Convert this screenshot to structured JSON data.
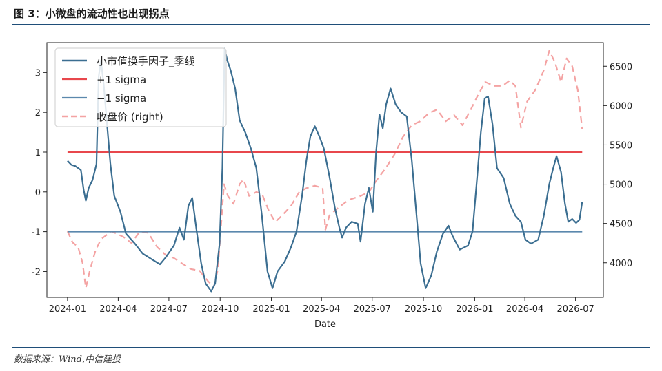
{
  "title": "图 3：小微盘的流动性也出现拐点",
  "source": "数据来源：Wind,中信建投",
  "colors": {
    "factor": "#3b6e91",
    "plus": "#e8474c",
    "minus": "#5b88ad",
    "close": "#f4a3a3",
    "rule": "#1f4e79"
  },
  "chart_data": {
    "type": "line",
    "xlabel": "Date",
    "x_ticks": [
      "2024-01",
      "2024-04",
      "2024-07",
      "2024-10",
      "2025-01",
      "2025-04",
      "2025-07",
      "2025-10",
      "2026-01",
      "2026-04",
      "2026-07"
    ],
    "y_left_ticks": [
      "-2",
      "-1",
      "0",
      "1",
      "2",
      "3"
    ],
    "y_right_ticks": [
      "4000",
      "4500",
      "5000",
      "5500",
      "6000",
      "6500"
    ],
    "y_left_lim": [
      -2.65,
      3.75
    ],
    "y_right_lim": [
      3560,
      6800
    ],
    "x_lim": [
      "2023-11-25",
      "2026-08-20"
    ],
    "legend": [
      "小市值换手因子_季线",
      "+1 sigma",
      "−1 sigma",
      "收盘价 (right)"
    ],
    "legend_position": "top-left",
    "grid": false,
    "series": [
      {
        "name": "小市值换手因子_季线",
        "axis": "left",
        "points": [
          [
            "2024-01-01",
            0.78
          ],
          [
            "2024-01-08",
            0.68
          ],
          [
            "2024-01-15",
            0.65
          ],
          [
            "2024-01-25",
            0.55
          ],
          [
            "2024-01-30",
            0.05
          ],
          [
            "2024-02-03",
            -0.22
          ],
          [
            "2024-02-08",
            0.1
          ],
          [
            "2024-02-15",
            0.3
          ],
          [
            "2024-02-22",
            0.7
          ],
          [
            "2024-02-26",
            2.9
          ],
          [
            "2024-03-01",
            3.3
          ],
          [
            "2024-03-06",
            2.7
          ],
          [
            "2024-03-12",
            1.7
          ],
          [
            "2024-03-18",
            0.7
          ],
          [
            "2024-03-25",
            -0.1
          ],
          [
            "2024-04-05",
            -0.5
          ],
          [
            "2024-04-15",
            -1.05
          ],
          [
            "2024-05-01",
            -1.3
          ],
          [
            "2024-05-15",
            -1.55
          ],
          [
            "2024-06-01",
            -1.7
          ],
          [
            "2024-06-15",
            -1.82
          ],
          [
            "2024-06-25",
            -1.65
          ],
          [
            "2024-07-10",
            -1.35
          ],
          [
            "2024-07-20",
            -0.9
          ],
          [
            "2024-07-28",
            -1.2
          ],
          [
            "2024-08-05",
            -0.35
          ],
          [
            "2024-08-12",
            -0.15
          ],
          [
            "2024-08-20",
            -1.0
          ],
          [
            "2024-08-28",
            -1.8
          ],
          [
            "2024-09-05",
            -2.3
          ],
          [
            "2024-09-15",
            -2.5
          ],
          [
            "2024-09-22",
            -2.3
          ],
          [
            "2024-09-30",
            -1.3
          ],
          [
            "2024-10-05",
            0.6
          ],
          [
            "2024-10-09",
            3.6
          ],
          [
            "2024-10-14",
            3.3
          ],
          [
            "2024-10-20",
            3.05
          ],
          [
            "2024-10-28",
            2.6
          ],
          [
            "2024-11-05",
            1.8
          ],
          [
            "2024-11-15",
            1.5
          ],
          [
            "2024-11-25",
            1.1
          ],
          [
            "2024-12-05",
            0.6
          ],
          [
            "2024-12-15",
            -0.6
          ],
          [
            "2024-12-25",
            -2.0
          ],
          [
            "2025-01-03",
            -2.42
          ],
          [
            "2025-01-12",
            -2.0
          ],
          [
            "2025-01-25",
            -1.75
          ],
          [
            "2025-02-05",
            -1.4
          ],
          [
            "2025-02-15",
            -1.0
          ],
          [
            "2025-02-25",
            -0.1
          ],
          [
            "2025-03-05",
            0.8
          ],
          [
            "2025-03-12",
            1.4
          ],
          [
            "2025-03-20",
            1.65
          ],
          [
            "2025-03-28",
            1.4
          ],
          [
            "2025-04-05",
            1.1
          ],
          [
            "2025-04-15",
            0.4
          ],
          [
            "2025-04-25",
            -0.4
          ],
          [
            "2025-05-03",
            -0.9
          ],
          [
            "2025-05-08",
            -1.15
          ],
          [
            "2025-05-15",
            -0.9
          ],
          [
            "2025-05-25",
            -0.75
          ],
          [
            "2025-06-05",
            -0.8
          ],
          [
            "2025-06-10",
            -1.25
          ],
          [
            "2025-06-18",
            -0.3
          ],
          [
            "2025-06-25",
            0.1
          ],
          [
            "2025-07-02",
            -0.5
          ],
          [
            "2025-07-08",
            1.0
          ],
          [
            "2025-07-14",
            1.95
          ],
          [
            "2025-07-20",
            1.6
          ],
          [
            "2025-07-26",
            2.2
          ],
          [
            "2025-08-03",
            2.6
          ],
          [
            "2025-08-12",
            2.2
          ],
          [
            "2025-08-22",
            2.0
          ],
          [
            "2025-09-01",
            1.9
          ],
          [
            "2025-09-10",
            0.8
          ],
          [
            "2025-09-18",
            -0.5
          ],
          [
            "2025-09-26",
            -1.8
          ],
          [
            "2025-10-05",
            -2.42
          ],
          [
            "2025-10-15",
            -2.1
          ],
          [
            "2025-10-25",
            -1.5
          ],
          [
            "2025-11-05",
            -1.05
          ],
          [
            "2025-11-15",
            -0.85
          ],
          [
            "2025-11-22",
            -1.1
          ],
          [
            "2025-12-05",
            -1.45
          ],
          [
            "2025-12-20",
            -1.35
          ],
          [
            "2025-12-28",
            -1.0
          ],
          [
            "2026-01-05",
            0.3
          ],
          [
            "2026-01-12",
            1.5
          ],
          [
            "2026-01-19",
            2.35
          ],
          [
            "2026-01-25",
            2.4
          ],
          [
            "2026-02-02",
            1.7
          ],
          [
            "2026-02-10",
            0.6
          ],
          [
            "2026-02-22",
            0.35
          ],
          [
            "2026-03-05",
            -0.3
          ],
          [
            "2026-03-15",
            -0.6
          ],
          [
            "2026-03-25",
            -0.75
          ],
          [
            "2026-04-02",
            -1.2
          ],
          [
            "2026-04-12",
            -1.3
          ],
          [
            "2026-04-25",
            -1.2
          ],
          [
            "2026-05-05",
            -0.6
          ],
          [
            "2026-05-15",
            0.2
          ],
          [
            "2026-05-22",
            0.6
          ],
          [
            "2026-05-28",
            0.9
          ],
          [
            "2026-06-05",
            0.5
          ],
          [
            "2026-06-12",
            -0.3
          ],
          [
            "2026-06-18",
            -0.75
          ],
          [
            "2026-06-25",
            -0.68
          ],
          [
            "2026-07-02",
            -0.78
          ],
          [
            "2026-07-08",
            -0.7
          ],
          [
            "2026-07-13",
            -0.25
          ]
        ]
      },
      {
        "name": "+1 sigma",
        "axis": "left",
        "points": [
          [
            "2024-01-01",
            1
          ],
          [
            "2026-07-13",
            1
          ]
        ]
      },
      {
        "name": "−1 sigma",
        "axis": "left",
        "points": [
          [
            "2024-01-01",
            -1
          ],
          [
            "2026-07-13",
            -1
          ]
        ]
      },
      {
        "name": "收盘价 (right)",
        "axis": "right",
        "points": [
          [
            "2024-01-01",
            4400
          ],
          [
            "2024-01-10",
            4260
          ],
          [
            "2024-01-20",
            4200
          ],
          [
            "2024-01-28",
            4000
          ],
          [
            "2024-02-03",
            3680
          ],
          [
            "2024-02-10",
            3900
          ],
          [
            "2024-02-20",
            4150
          ],
          [
            "2024-03-01",
            4300
          ],
          [
            "2024-03-20",
            4400
          ],
          [
            "2024-04-10",
            4330
          ],
          [
            "2024-04-25",
            4250
          ],
          [
            "2024-05-10",
            4400
          ],
          [
            "2024-05-25",
            4380
          ],
          [
            "2024-06-10",
            4200
          ],
          [
            "2024-06-25",
            4100
          ],
          [
            "2024-07-10",
            4060
          ],
          [
            "2024-07-25",
            3990
          ],
          [
            "2024-08-10",
            3920
          ],
          [
            "2024-08-25",
            3900
          ],
          [
            "2024-09-10",
            3760
          ],
          [
            "2024-09-20",
            3700
          ],
          [
            "2024-09-27",
            3920
          ],
          [
            "2024-10-03",
            4500
          ],
          [
            "2024-10-08",
            5000
          ],
          [
            "2024-10-15",
            4850
          ],
          [
            "2024-10-25",
            4750
          ],
          [
            "2024-11-05",
            5000
          ],
          [
            "2024-11-12",
            5060
          ],
          [
            "2024-11-22",
            4850
          ],
          [
            "2024-12-05",
            4900
          ],
          [
            "2024-12-15",
            4880
          ],
          [
            "2024-12-28",
            4650
          ],
          [
            "2025-01-08",
            4520
          ],
          [
            "2025-01-20",
            4600
          ],
          [
            "2025-02-05",
            4720
          ],
          [
            "2025-02-20",
            4900
          ],
          [
            "2025-03-05",
            4950
          ],
          [
            "2025-03-20",
            4980
          ],
          [
            "2025-04-03",
            4950
          ],
          [
            "2025-04-08",
            4420
          ],
          [
            "2025-04-15",
            4600
          ],
          [
            "2025-05-01",
            4700
          ],
          [
            "2025-05-20",
            4800
          ],
          [
            "2025-06-10",
            4850
          ],
          [
            "2025-06-25",
            4900
          ],
          [
            "2025-07-10",
            5060
          ],
          [
            "2025-07-25",
            5200
          ],
          [
            "2025-08-10",
            5380
          ],
          [
            "2025-08-25",
            5600
          ],
          [
            "2025-09-10",
            5750
          ],
          [
            "2025-09-25",
            5800
          ],
          [
            "2025-10-10",
            5900
          ],
          [
            "2025-10-25",
            5950
          ],
          [
            "2025-11-10",
            5800
          ],
          [
            "2025-11-25",
            5880
          ],
          [
            "2025-12-10",
            5750
          ],
          [
            "2025-12-25",
            5950
          ],
          [
            "2026-01-08",
            6150
          ],
          [
            "2026-01-20",
            6300
          ],
          [
            "2026-02-05",
            6250
          ],
          [
            "2026-02-20",
            6250
          ],
          [
            "2026-03-05",
            6320
          ],
          [
            "2026-03-15",
            6250
          ],
          [
            "2026-03-25",
            5720
          ],
          [
            "2026-04-05",
            6050
          ],
          [
            "2026-04-20",
            6200
          ],
          [
            "2026-05-05",
            6450
          ],
          [
            "2026-05-15",
            6700
          ],
          [
            "2026-05-25",
            6550
          ],
          [
            "2026-06-05",
            6300
          ],
          [
            "2026-06-15",
            6600
          ],
          [
            "2026-06-25",
            6500
          ],
          [
            "2026-07-05",
            6200
          ],
          [
            "2026-07-13",
            5700
          ]
        ]
      }
    ]
  }
}
